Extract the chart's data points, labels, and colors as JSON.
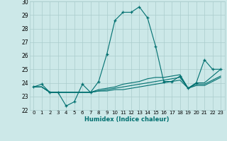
{
  "xlabel": "Humidex (Indice chaleur)",
  "xlim": [
    -0.5,
    23.5
  ],
  "ylim": [
    22,
    30
  ],
  "yticks": [
    22,
    23,
    24,
    25,
    26,
    27,
    28,
    29,
    30
  ],
  "xticks": [
    0,
    1,
    2,
    3,
    4,
    5,
    6,
    7,
    8,
    9,
    10,
    11,
    12,
    13,
    14,
    15,
    16,
    17,
    18,
    19,
    20,
    21,
    22,
    23
  ],
  "bg_color": "#cce8e8",
  "grid_color": "#aacccc",
  "line_color": "#007070",
  "lines": [
    {
      "x": [
        0,
        1,
        2,
        3,
        4,
        5,
        6,
        7,
        8,
        9,
        10,
        11,
        12,
        13,
        14,
        15,
        16,
        17,
        18,
        19,
        20,
        21,
        22,
        23
      ],
      "y": [
        23.7,
        23.9,
        23.3,
        23.3,
        22.3,
        22.6,
        23.9,
        23.3,
        24.1,
        26.1,
        28.6,
        29.2,
        29.2,
        29.6,
        28.8,
        26.7,
        24.1,
        24.1,
        24.5,
        23.6,
        24.0,
        25.7,
        25.0,
        25.0
      ],
      "marker": true
    },
    {
      "x": [
        0,
        1,
        2,
        3,
        4,
        5,
        6,
        7,
        8,
        9,
        10,
        11,
        12,
        13,
        14,
        15,
        16,
        17,
        18,
        19,
        20,
        21,
        22,
        23
      ],
      "y": [
        23.7,
        23.7,
        23.3,
        23.3,
        23.3,
        23.3,
        23.3,
        23.3,
        23.5,
        23.6,
        23.7,
        23.9,
        24.0,
        24.1,
        24.3,
        24.4,
        24.4,
        24.5,
        24.6,
        23.6,
        24.0,
        24.0,
        24.5,
        25.0
      ],
      "marker": false
    },
    {
      "x": [
        0,
        1,
        2,
        3,
        4,
        5,
        6,
        7,
        8,
        9,
        10,
        11,
        12,
        13,
        14,
        15,
        16,
        17,
        18,
        19,
        20,
        21,
        22,
        23
      ],
      "y": [
        23.7,
        23.7,
        23.3,
        23.3,
        23.3,
        23.3,
        23.3,
        23.3,
        23.4,
        23.5,
        23.6,
        23.7,
        23.8,
        23.9,
        24.0,
        24.1,
        24.2,
        24.3,
        24.4,
        23.6,
        23.9,
        23.9,
        24.2,
        24.5
      ],
      "marker": false
    },
    {
      "x": [
        0,
        1,
        2,
        3,
        4,
        5,
        6,
        7,
        8,
        9,
        10,
        11,
        12,
        13,
        14,
        15,
        16,
        17,
        18,
        19,
        20,
        21,
        22,
        23
      ],
      "y": [
        23.7,
        23.7,
        23.3,
        23.3,
        23.3,
        23.3,
        23.3,
        23.3,
        23.4,
        23.4,
        23.5,
        23.5,
        23.6,
        23.7,
        23.8,
        23.9,
        24.0,
        24.1,
        24.2,
        23.6,
        23.8,
        23.8,
        24.1,
        24.4
      ],
      "marker": false
    }
  ]
}
